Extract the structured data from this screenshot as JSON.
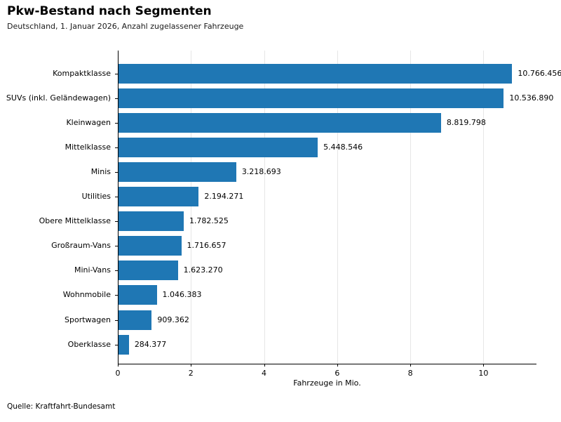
{
  "header": {
    "title": "Pkw-Bestand nach Segmenten",
    "subtitle": "Deutschland, 1. Januar 2026, Anzahl zugelassener Fahrzeuge"
  },
  "footer": {
    "source": "Quelle: Kraftfahrt-Bundesamt"
  },
  "chart_data": {
    "type": "bar",
    "orientation": "horizontal",
    "title": "Pkw-Bestand nach Segmenten",
    "subtitle": "Deutschland, 1. Januar 2026, Anzahl zugelassener Fahrzeuge",
    "xlabel": "Fahrzeuge in Mio.",
    "ylabel": "",
    "categories": [
      "Kompaktklasse",
      "SUVs (inkl. Geländewagen)",
      "Kleinwagen",
      "Mittelklasse",
      "Minis",
      "Utilities",
      "Obere Mittelklasse",
      "Großraum-Vans",
      "Mini-Vans",
      "Wohnmobile",
      "Sportwagen",
      "Oberklasse"
    ],
    "values": [
      10766456,
      10536890,
      8819798,
      5448546,
      3218693,
      2194271,
      1782525,
      1716657,
      1623270,
      1046383,
      909362,
      284377
    ],
    "value_labels": [
      "10.766.456",
      "10.536.890",
      "8.819.798",
      "5.448.546",
      "3.218.693",
      "2.194.271",
      "1.782.525",
      "1.716.657",
      "1.623.270",
      "1.046.383",
      "909.362",
      "284.377"
    ],
    "xticks": [
      0,
      2,
      4,
      6,
      8,
      10
    ],
    "xtick_labels": [
      "0",
      "2",
      "4",
      "6",
      "8",
      "10"
    ],
    "xlim": [
      0,
      11.45
    ],
    "unit_divisor": 1000000,
    "grid": true,
    "legend": false,
    "bar_color": "#1f77b4",
    "grid_color": "#e6e6e6",
    "source": "Quelle: Kraftfahrt-Bundesamt"
  }
}
